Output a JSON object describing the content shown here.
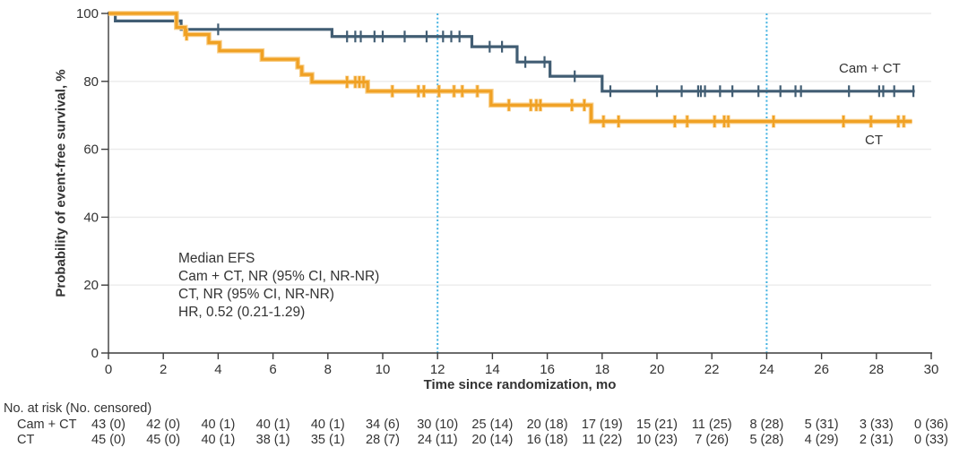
{
  "chart_data": {
    "type": "line",
    "subtype": "kaplan-meier-step",
    "title": "",
    "xlabel": "Time since randomization, mo",
    "ylabel": "Probability of event-free survival, %",
    "xlim": [
      0,
      30
    ],
    "ylim": [
      0,
      100
    ],
    "xticks": [
      0,
      2,
      4,
      6,
      8,
      10,
      12,
      14,
      16,
      18,
      20,
      22,
      24,
      26,
      28,
      30
    ],
    "yticks": [
      0,
      20,
      40,
      60,
      80,
      100
    ],
    "grid": "horizontal-light",
    "reference_lines_x": [
      12,
      24
    ],
    "reference_line_color": "#41B1E1",
    "annotation": [
      "Median EFS",
      "Cam + CT, NR (95% CI, NR-NR)",
      "CT, NR (95% CI, NR-NR)",
      "HR, 0.52 (0.21-1.29)"
    ],
    "series": [
      {
        "name": "Cam + CT",
        "color": "#415D73",
        "start": [
          0,
          100
        ],
        "end_month": 29.4,
        "drops": [
          [
            0.25,
            97.8
          ],
          [
            2.65,
            95.3
          ],
          [
            8.15,
            93.2
          ],
          [
            13.25,
            90.2
          ],
          [
            14.9,
            85.7
          ],
          [
            16.1,
            81.5
          ],
          [
            18.0,
            77.1
          ]
        ],
        "censors": [
          [
            4.0,
            95.3
          ],
          [
            8.7,
            93.2
          ],
          [
            9.0,
            93.2
          ],
          [
            9.2,
            93.2
          ],
          [
            9.7,
            93.2
          ],
          [
            10.0,
            93.2
          ],
          [
            10.8,
            93.2
          ],
          [
            11.6,
            93.2
          ],
          [
            12.2,
            93.2
          ],
          [
            12.5,
            93.2
          ],
          [
            12.8,
            93.2
          ],
          [
            13.9,
            90.2
          ],
          [
            14.35,
            90.2
          ],
          [
            15.2,
            85.7
          ],
          [
            15.9,
            85.7
          ],
          [
            17.0,
            81.5
          ],
          [
            18.3,
            77.1
          ],
          [
            20.0,
            77.1
          ],
          [
            20.9,
            77.1
          ],
          [
            21.5,
            77.1
          ],
          [
            21.6,
            77.1
          ],
          [
            21.75,
            77.1
          ],
          [
            22.3,
            77.1
          ],
          [
            22.75,
            77.1
          ],
          [
            23.7,
            77.1
          ],
          [
            24.5,
            77.1
          ],
          [
            25.05,
            77.1
          ],
          [
            25.25,
            77.1
          ],
          [
            27.0,
            77.1
          ],
          [
            28.1,
            77.1
          ],
          [
            28.25,
            77.1
          ],
          [
            28.65,
            77.1
          ],
          [
            29.35,
            77.1
          ]
        ]
      },
      {
        "name": "CT",
        "color": "#F0A124",
        "halo_color": "#F8CD86",
        "start": [
          0,
          100
        ],
        "end_month": 29.3,
        "drops": [
          [
            2.48,
            95.9
          ],
          [
            2.8,
            93.8
          ],
          [
            3.66,
            91.4
          ],
          [
            4.05,
            89.0
          ],
          [
            5.6,
            86.5
          ],
          [
            6.9,
            84.2
          ],
          [
            7.05,
            82.0
          ],
          [
            7.42,
            79.8
          ],
          [
            9.45,
            77.1
          ],
          [
            13.95,
            73.0
          ],
          [
            17.6,
            68.2
          ]
        ],
        "censors": [
          [
            2.85,
            93.8
          ],
          [
            8.7,
            79.8
          ],
          [
            9.0,
            79.8
          ],
          [
            9.15,
            79.8
          ],
          [
            9.3,
            79.8
          ],
          [
            10.35,
            77.1
          ],
          [
            11.3,
            77.1
          ],
          [
            11.5,
            77.1
          ],
          [
            12.05,
            77.1
          ],
          [
            12.6,
            77.1
          ],
          [
            12.9,
            77.1
          ],
          [
            13.45,
            77.1
          ],
          [
            14.6,
            73.0
          ],
          [
            15.4,
            73.0
          ],
          [
            15.6,
            73.0
          ],
          [
            15.75,
            73.0
          ],
          [
            16.9,
            73.0
          ],
          [
            17.35,
            73.0
          ],
          [
            18.05,
            68.2
          ],
          [
            18.6,
            68.2
          ],
          [
            20.65,
            68.2
          ],
          [
            21.1,
            68.2
          ],
          [
            22.1,
            68.2
          ],
          [
            22.45,
            68.2
          ],
          [
            22.6,
            68.2
          ],
          [
            24.25,
            68.2
          ],
          [
            26.8,
            68.2
          ],
          [
            27.8,
            68.2
          ],
          [
            28.8,
            68.2
          ],
          [
            29.0,
            68.2
          ]
        ]
      }
    ]
  },
  "risk_table": {
    "header": "No. at risk (No. censored)",
    "columns_months": [
      0,
      2,
      4,
      6,
      8,
      10,
      12,
      14,
      16,
      18,
      20,
      22,
      24,
      26,
      28,
      30
    ],
    "rows": [
      {
        "label": "Cam + CT",
        "values": [
          "43 (0)",
          "42 (0)",
          "40 (1)",
          "40 (1)",
          "40 (1)",
          "34 (6)",
          "30 (10)",
          "25 (14)",
          "20 (18)",
          "17 (19)",
          "15 (21)",
          "11 (25)",
          "8 (28)",
          "5 (31)",
          "3 (33)",
          "0 (36)"
        ]
      },
      {
        "label": "CT",
        "values": [
          "45 (0)",
          "45 (0)",
          "40 (1)",
          "38 (1)",
          "35 (1)",
          "28 (7)",
          "24 (11)",
          "20 (14)",
          "16 (18)",
          "11 (22)",
          "10 (23)",
          "7 (26)",
          "5 (28)",
          "4 (29)",
          "2 (31)",
          "0 (33)"
        ]
      }
    ]
  },
  "colors": {
    "axis": "#3c3c3c",
    "grid": "#ebebeb",
    "text": "#333333",
    "cam_ct_line": "#415D73",
    "ct_line": "#F0A124",
    "reference_dotted": "#41B1E1"
  }
}
